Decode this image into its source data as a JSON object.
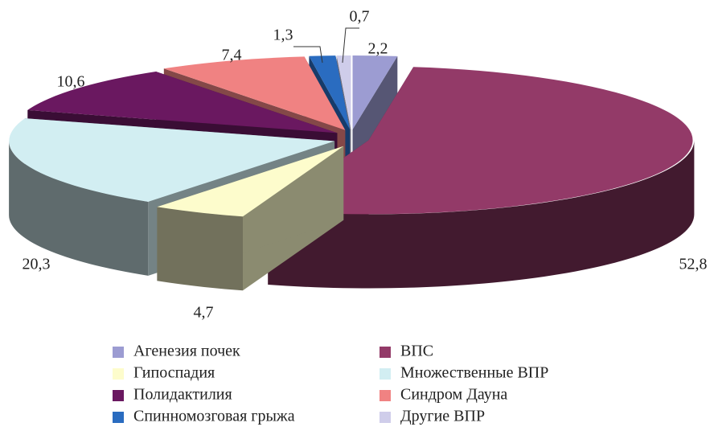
{
  "chart_data": {
    "type": "pie",
    "categories": [
      "Агенезия почек",
      "ВПС",
      "Гипоспадия",
      "Множественные ВПР",
      "Полидактилия",
      "Синдром Дауна",
      "Спинномозговая грыжа",
      "Другие ВПР"
    ],
    "values": [
      2.2,
      52.8,
      4.7,
      20.3,
      10.6,
      7.4,
      1.3,
      0.7
    ],
    "value_labels": [
      "2,2",
      "52,8",
      "4,7",
      "20,3",
      "10,6",
      "7,4",
      "1,3",
      "0,7"
    ],
    "colors": [
      "#9c9cd2",
      "#933a68",
      "#fdfccc",
      "#d2eef2",
      "#6a1860",
      "#f08282",
      "#2a6cc0",
      "#cfcdea"
    ],
    "legend": "bottom"
  }
}
